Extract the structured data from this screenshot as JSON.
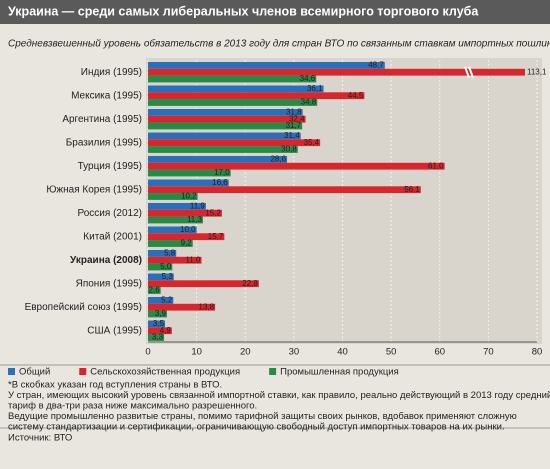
{
  "chart_data": {
    "type": "hbar",
    "title": "Украина — среди самых либеральных членов всемирного торгового клуба",
    "subtitle": "Средневзвешенный уровень обязательств в 2013 году для стран ВТО по связанным ставкам импортных пошлин*",
    "categories": [
      "Индия (1995)",
      "Мексика (1995)",
      "Аргентина (1995)",
      "Бразилия (1995)",
      "Турция (1995)",
      "Южная Корея (1995)",
      "Россия (2012)",
      "Китай (2001)",
      "Украина (2008)",
      "Япония (1995)",
      "Европейский союз (1995)",
      "США (1995)"
    ],
    "series": [
      {
        "name": "Общий",
        "color": "#2a6fb8",
        "values": [
          48.7,
          36.1,
          31.8,
          31.4,
          28.6,
          16.6,
          11.9,
          10.0,
          5.8,
          5.3,
          5.2,
          3.5
        ],
        "value_labels": [
          "48,7",
          "36,1",
          "31,8",
          "31,4",
          "28,6",
          "16,6",
          "11,9",
          "10,0",
          "5,8",
          "5,3",
          "5,2",
          "3,5"
        ]
      },
      {
        "name": "Сельскохозяйственная продукция",
        "color": "#d7262e",
        "values": [
          113.1,
          44.5,
          32.4,
          35.4,
          61.0,
          56.1,
          15.2,
          15.7,
          11.0,
          22.8,
          13.8,
          4.9
        ],
        "value_labels": [
          "113,1",
          "44,5",
          "32,4",
          "35,4",
          "61,0",
          "56,1",
          "15,2",
          "15,7",
          "11,0",
          "22,8",
          "13,8",
          "4,9"
        ]
      },
      {
        "name": "Промышленная продукция",
        "color": "#278a47",
        "values": [
          34.6,
          34.8,
          31.7,
          30.8,
          17.0,
          10.2,
          11.3,
          9.2,
          5.0,
          2.6,
          3.9,
          3.3
        ],
        "value_labels": [
          "34,6",
          "34,8",
          "31,7",
          "30,8",
          "17,0",
          "10,2",
          "11,3",
          "9,2",
          "5,0",
          "2,6",
          "3,9",
          "3,3"
        ]
      }
    ],
    "xlim": [
      0,
      80
    ],
    "xticks": [
      0,
      10,
      20,
      30,
      40,
      50,
      60,
      70,
      80
    ],
    "grid": true,
    "notes": [
      "*В скобках указан год вступления страны в ВТО.",
      "У стран, имеющих высокий уровень связанной импортной ставки, как правило, реально действующий в 2013 году средний",
      "тариф в два-три раза ниже максимально разрешенного.",
      "Ведущие промышленно развитые страны, помимо тарифной защиты своих рынков, вдобавок применяют сложную",
      "систему стандартизации и сертификации, ограничивающую свободный доступ импортных товаров на их рынки."
    ],
    "source": "Источник: ВТО"
  }
}
